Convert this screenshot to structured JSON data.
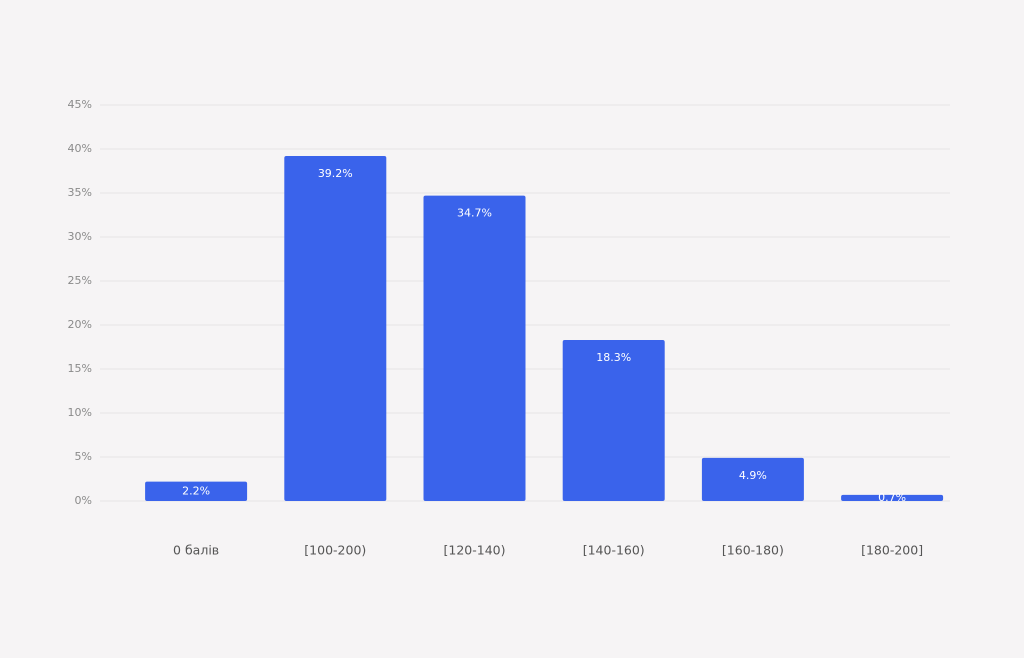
{
  "chart_data": {
    "type": "bar",
    "categories": [
      "0 балів",
      "[100-200)",
      "[120-140)",
      "[140-160)",
      "[160-180)",
      "[180-200]"
    ],
    "values": [
      2.2,
      39.2,
      34.7,
      18.3,
      4.9,
      0.7
    ],
    "value_labels": [
      "2.2%",
      "39.2%",
      "34.7%",
      "18.3%",
      "4.9%",
      "0.7%"
    ],
    "color": "#3a63eb",
    "ylim": [
      0,
      45
    ],
    "yticks": [
      {
        "value": 0,
        "label": "0%"
      },
      {
        "value": 5,
        "label": "5%"
      },
      {
        "value": 10,
        "label": "10%"
      },
      {
        "value": 15,
        "label": "15%"
      },
      {
        "value": 20,
        "label": "20%"
      },
      {
        "value": 25,
        "label": "25%"
      },
      {
        "value": 30,
        "label": "30%"
      },
      {
        "value": 35,
        "label": "35%"
      },
      {
        "value": 40,
        "label": "40%"
      },
      {
        "value": 45,
        "label": "45%"
      }
    ],
    "grid": true
  }
}
